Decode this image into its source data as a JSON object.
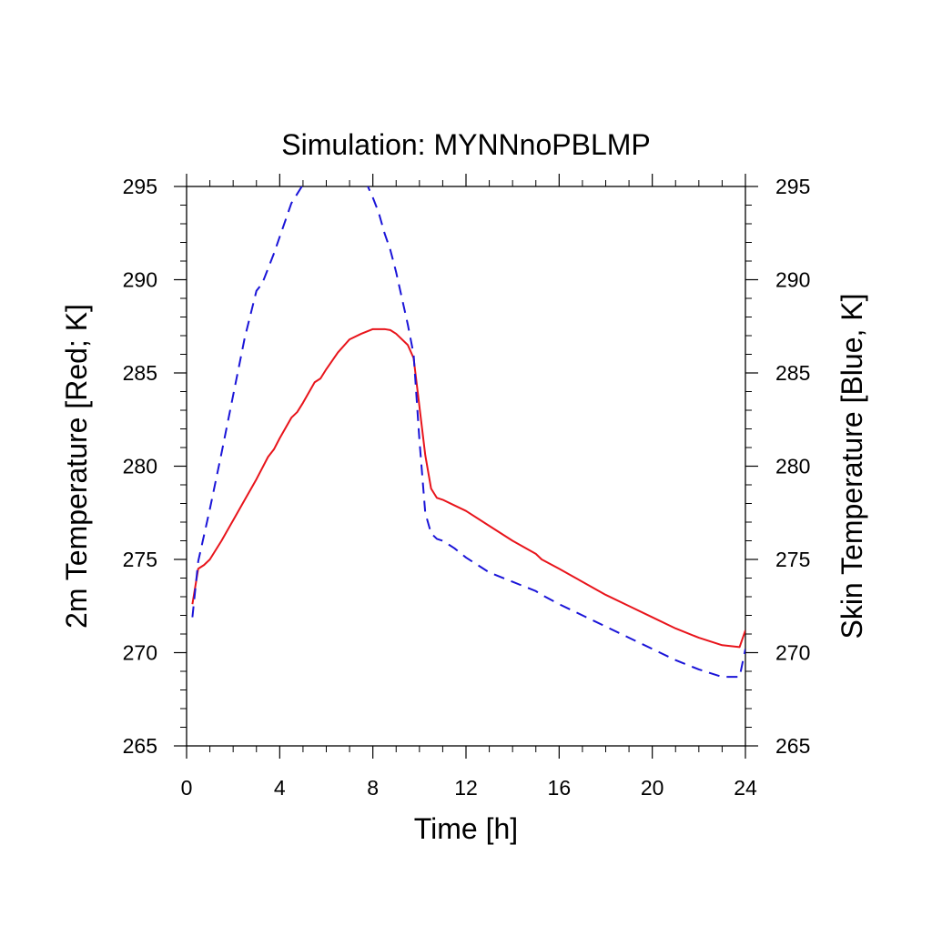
{
  "chart_data": {
    "type": "line",
    "title": "Simulation: MYNNnoPBLMP",
    "xlabel": "Time [h]",
    "ylabel_left": "2m Temperature [Red; K]",
    "ylabel_right": "Skin Temperature [Blue, K]",
    "xlim": [
      0,
      24
    ],
    "ylim": [
      265,
      295
    ],
    "xticks": [
      "0",
      "4",
      "8",
      "12",
      "16",
      "20",
      "24"
    ],
    "yticks_left": [
      "265",
      "270",
      "275",
      "280",
      "285",
      "290",
      "295"
    ],
    "yticks_right": [
      "265",
      "270",
      "275",
      "280",
      "285",
      "290",
      "295"
    ],
    "grid": false,
    "series": [
      {
        "axis": "left",
        "color": "#e8141b",
        "dash": "solid",
        "x": [
          0.25,
          0.5,
          0.75,
          1,
          1.5,
          2,
          2.5,
          3,
          3.5,
          3.75,
          4,
          4.5,
          4.75,
          5,
          5.5,
          5.75,
          6,
          6.5,
          7,
          7.5,
          8,
          8.5,
          8.75,
          9,
          9.5,
          9.75,
          10,
          10.25,
          10.5,
          10.75,
          11,
          11.5,
          12,
          13,
          14,
          15,
          15.25,
          16,
          17,
          18,
          19,
          20,
          21,
          22,
          23,
          23.75,
          24
        ],
        "y": [
          272.6,
          274.5,
          274.7,
          275.0,
          276.0,
          277.1,
          278.2,
          279.3,
          280.5,
          280.9,
          281.5,
          282.6,
          282.9,
          283.4,
          284.5,
          284.7,
          285.2,
          286.1,
          286.8,
          287.1,
          287.35,
          287.35,
          287.3,
          287.1,
          286.5,
          285.8,
          283.2,
          280.6,
          278.8,
          278.3,
          278.2,
          277.9,
          277.6,
          276.8,
          276.0,
          275.3,
          275.0,
          274.5,
          273.8,
          273.1,
          272.5,
          271.9,
          271.3,
          270.8,
          270.4,
          270.3,
          271.2
        ]
      },
      {
        "axis": "right",
        "color": "#1a14d8",
        "dash": "dashed",
        "x": [
          0.25,
          0.5,
          0.75,
          1,
          1.5,
          2,
          2.5,
          3,
          3.25,
          3.5,
          3.75,
          4,
          4.25,
          4.5,
          4.75,
          5,
          7.75,
          8,
          8.25,
          8.5,
          8.75,
          9,
          9.25,
          9.5,
          9.75,
          10,
          10.25,
          10.5,
          10.75,
          11,
          11.5,
          12,
          13,
          14,
          15,
          15.25,
          16,
          17,
          18,
          19,
          20,
          21,
          22,
          23,
          23.75,
          24
        ],
        "y": [
          271.9,
          274.9,
          276.3,
          277.7,
          280.7,
          283.8,
          286.9,
          289.4,
          289.8,
          290.6,
          291.4,
          292.3,
          293.2,
          294.1,
          294.6,
          295.1,
          295.1,
          294.4,
          293.6,
          292.5,
          291.6,
          290.4,
          289.0,
          287.6,
          286.0,
          281.4,
          277.5,
          276.4,
          276.1,
          276.0,
          275.6,
          275.1,
          274.3,
          273.8,
          273.3,
          273.1,
          272.6,
          272.0,
          271.4,
          270.8,
          270.2,
          269.6,
          269.1,
          268.7,
          268.7,
          270.2
        ]
      }
    ]
  }
}
